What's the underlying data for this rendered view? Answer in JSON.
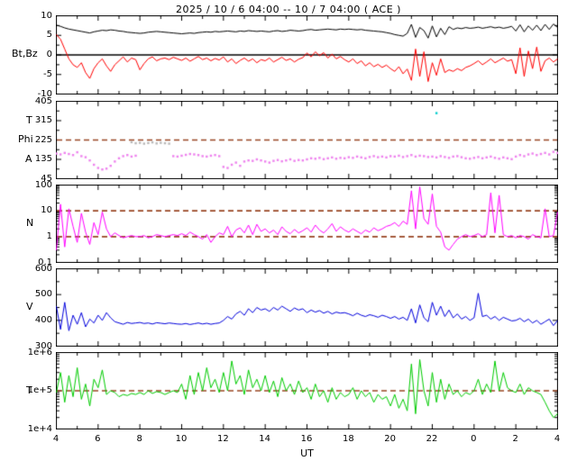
{
  "title": "2025 / 10 / 6   04:00 -- 10 / 7   04:00 ( ACE )",
  "colors": {
    "dashed_line": "#994422",
    "frame": "#000000",
    "background": "#ffffff"
  },
  "x_axis": {
    "label": "UT",
    "range": [
      4,
      28
    ],
    "tick_hours": [
      4,
      6,
      8,
      10,
      12,
      14,
      16,
      18,
      20,
      22,
      24,
      26,
      28
    ],
    "tick_labels": [
      "4",
      "6",
      "8",
      "10",
      "12",
      "14",
      "16",
      "18",
      "20",
      "22",
      "0",
      "2",
      "4"
    ]
  },
  "chart_data": [
    {
      "type": "line",
      "name": "magnetic-field",
      "axis_labels": [
        "Bt,Bz"
      ],
      "scale": "linear",
      "ylim": [
        -10,
        10
      ],
      "yticks": [
        10,
        5,
        0,
        -5,
        -10
      ],
      "ytick_labels": [
        "10",
        "5",
        "0",
        "-5",
        "-10"
      ],
      "solid_hlines": [
        0
      ],
      "dashed_hlines": [],
      "series": [
        {
          "name": "Bt",
          "color": "#000000",
          "style": "line",
          "values": [
            7.6,
            7.3,
            6.9,
            6.6,
            6.4,
            6.2,
            6.0,
            5.8,
            5.6,
            5.9,
            6.1,
            6.3,
            6.2,
            6.4,
            6.3,
            6.1,
            6.0,
            5.8,
            5.7,
            5.6,
            5.5,
            5.6,
            5.8,
            5.9,
            6.0,
            5.9,
            5.8,
            5.7,
            5.6,
            5.5,
            5.4,
            5.5,
            5.6,
            5.5,
            5.7,
            5.8,
            5.9,
            5.8,
            6.0,
            5.9,
            6.0,
            6.1,
            6.0,
            5.9,
            6.1,
            6.0,
            6.2,
            6.1,
            6.0,
            6.1,
            6.0,
            5.9,
            6.1,
            6.2,
            6.0,
            6.1,
            6.3,
            6.2,
            6.1,
            6.2,
            6.4,
            6.5,
            6.3,
            6.4,
            6.5,
            6.6,
            6.5,
            6.4,
            6.6,
            6.5,
            6.6,
            6.5,
            6.4,
            6.5,
            6.3,
            6.2,
            6.1,
            6.0,
            5.9,
            5.7,
            5.5,
            5.2,
            5.0,
            4.8,
            5.5,
            7.8,
            4.5,
            7.0,
            6.2,
            4.3,
            7.4,
            4.6,
            6.8,
            5.2,
            7.2,
            6.5,
            6.9,
            6.7,
            7.0,
            6.8,
            6.9,
            7.1,
            6.8,
            7.0,
            7.2,
            6.9,
            7.1,
            6.8,
            7.0,
            7.3,
            6.1,
            7.7,
            5.9,
            7.4,
            6.3,
            7.6,
            6.2,
            7.8,
            6.5,
            7.9,
            7.0
          ]
        },
        {
          "name": "Bz",
          "color": "#ff0000",
          "style": "line",
          "values": [
            5.2,
            4.0,
            1.5,
            -1.0,
            -2.5,
            -3.2,
            -2.0,
            -4.5,
            -6.0,
            -3.5,
            -2.0,
            -1.0,
            -2.8,
            -4.2,
            -2.5,
            -1.5,
            -0.5,
            -1.8,
            -0.8,
            -1.2,
            -3.8,
            -2.2,
            -1.0,
            -0.5,
            -1.5,
            -1.0,
            -0.8,
            -1.2,
            -0.6,
            -1.0,
            -1.4,
            -0.8,
            -1.6,
            -1.0,
            -0.4,
            -1.2,
            -0.8,
            -1.5,
            -0.9,
            -1.3,
            -0.5,
            -1.8,
            -1.0,
            -2.2,
            -1.4,
            -0.8,
            -1.6,
            -1.0,
            -2.0,
            -1.2,
            -1.5,
            -0.8,
            -1.8,
            -1.2,
            -0.6,
            -1.4,
            -1.0,
            -1.8,
            -1.1,
            -0.7,
            0.5,
            -0.5,
            0.8,
            -0.2,
            0.6,
            -0.8,
            0.2,
            -1.0,
            -0.4,
            -1.2,
            -1.8,
            -1.0,
            -2.2,
            -1.5,
            -2.8,
            -2.0,
            -3.0,
            -2.4,
            -3.2,
            -2.6,
            -3.5,
            -4.2,
            -3.0,
            -4.8,
            -3.6,
            -6.5,
            1.5,
            -5.5,
            0.8,
            -6.8,
            -2.0,
            -5.2,
            -1.0,
            -4.5,
            -3.8,
            -4.2,
            -3.5,
            -4.0,
            -3.2,
            -2.8,
            -2.2,
            -1.5,
            -2.5,
            -1.8,
            -1.0,
            -2.0,
            -1.4,
            -0.8,
            -1.6,
            -1.2,
            -4.8,
            1.8,
            -5.5,
            1.0,
            -3.5,
            2.0,
            -4.2,
            -1.5,
            -0.8,
            -1.8,
            -1.0
          ]
        }
      ]
    },
    {
      "type": "scatter",
      "name": "phi-angle",
      "axis_labels": [
        "T",
        "Phi",
        "A"
      ],
      "scale": "linear",
      "ylim": [
        45,
        405
      ],
      "yticks": [
        405,
        315,
        225,
        135,
        45
      ],
      "ytick_labels": [
        "405",
        "315",
        "225",
        "135",
        "45"
      ],
      "solid_hlines": [],
      "dashed_hlines": [
        225
      ],
      "series": [
        {
          "name": "Phi",
          "color": "#ee82ee",
          "style": "dots",
          "values": [
            162,
            158,
            165,
            160,
            155,
            168,
            150,
            145,
            130,
            110,
            95,
            88,
            92,
            105,
            125,
            140,
            150,
            155,
            148,
            152,
            null,
            null,
            null,
            null,
            null,
            null,
            null,
            null,
            150,
            148,
            152,
            156,
            160,
            158,
            155,
            150,
            148,
            152,
            155,
            150,
            100,
            95,
            110,
            120,
            105,
            125,
            130,
            128,
            135,
            130,
            125,
            120,
            128,
            132,
            126,
            130,
            135,
            128,
            132,
            130,
            135,
            140,
            138,
            142,
            136,
            140,
            144,
            138,
            142,
            140,
            145,
            142,
            148,
            144,
            140,
            146,
            150,
            145,
            148,
            144,
            150,
            148,
            152,
            146,
            150,
            155,
            148,
            152,
            150,
            146,
            148,
            144,
            150,
            146,
            142,
            148,
            150,
            145,
            140,
            138,
            142,
            146,
            140,
            144,
            148,
            142,
            138,
            144,
            140,
            136,
            148,
            155,
            150,
            158,
            162,
            155,
            160,
            165,
            158,
            170,
            165
          ]
        },
        {
          "name": "Phi-alternate",
          "color": "#b8b8b8",
          "style": "dots",
          "x": [
            7.6,
            7.8,
            8.0,
            8.2,
            8.4,
            8.6,
            8.8,
            9.0,
            9.2,
            9.4
          ],
          "values": [
            215,
            210,
            212,
            208,
            211,
            214,
            209,
            212,
            210,
            208
          ]
        },
        {
          "name": "outlier-point",
          "color": "#00cccc",
          "style": "dots",
          "x": [
            22.2
          ],
          "values": [
            350
          ]
        }
      ]
    },
    {
      "type": "line",
      "name": "proton-density",
      "axis_labels": [
        "N"
      ],
      "scale": "log",
      "ylim": [
        0.1,
        100
      ],
      "yticks": [
        100,
        10,
        1,
        0.1
      ],
      "ytick_labels": [
        "100",
        "10",
        "1",
        "0.1"
      ],
      "solid_hlines": [],
      "dashed_hlines": [
        10,
        1
      ],
      "series": [
        {
          "name": "N",
          "color": "#ff00ff",
          "style": "line",
          "values": [
            0.3,
            18,
            0.4,
            12,
            2.5,
            0.6,
            8,
            1.5,
            0.5,
            3.5,
            1.2,
            9,
            2.0,
            1.0,
            1.4,
            1.1,
            0.9,
            1.0,
            1.1,
            1.0,
            1.0,
            1.1,
            0.9,
            1.0,
            1.2,
            1.1,
            1.0,
            1.1,
            1.2,
            1.1,
            1.3,
            1.1,
            1.5,
            1.2,
            1.0,
            0.8,
            1.2,
            0.6,
            1.0,
            1.4,
            1.2,
            2.5,
            1.0,
            1.8,
            2.2,
            1.4,
            2.8,
            1.2,
            3.0,
            1.6,
            2.0,
            1.4,
            1.8,
            1.2,
            2.4,
            1.6,
            1.3,
            1.9,
            1.4,
            1.7,
            2.2,
            1.5,
            2.8,
            1.8,
            1.4,
            2.0,
            3.2,
            1.6,
            2.4,
            1.8,
            1.5,
            2.0,
            1.6,
            1.3,
            1.8,
            1.5,
            2.2,
            1.7,
            2.0,
            2.5,
            2.8,
            3.5,
            2.5,
            4.0,
            3.0,
            60,
            2.0,
            85,
            5.0,
            3.0,
            45,
            2.5,
            1.5,
            0.4,
            0.3,
            0.5,
            0.8,
            1.0,
            1.2,
            1.0,
            1.1,
            1.3,
            1.0,
            1.2,
            50,
            1.4,
            40,
            1.2,
            1.0,
            1.1,
            0.9,
            1.1,
            1.0,
            0.8,
            1.2,
            1.0,
            0.9,
            12,
            1.0,
            1.1,
            9.0
          ]
        }
      ]
    },
    {
      "type": "line",
      "name": "solar-wind-speed",
      "axis_labels": [
        "V"
      ],
      "scale": "linear",
      "ylim": [
        300,
        600
      ],
      "yticks": [
        600,
        500,
        400,
        300
      ],
      "ytick_labels": [
        "600",
        "500",
        "400",
        "300"
      ],
      "solid_hlines": [],
      "dashed_hlines": [],
      "series": [
        {
          "name": "V",
          "color": "#0000dd",
          "style": "line",
          "values": [
            455,
            365,
            470,
            360,
            420,
            385,
            430,
            375,
            405,
            390,
            420,
            400,
            430,
            410,
            395,
            390,
            385,
            392,
            388,
            390,
            392,
            388,
            390,
            386,
            391,
            389,
            387,
            390,
            388,
            386,
            385,
            388,
            384,
            387,
            390,
            386,
            389,
            385,
            388,
            390,
            400,
            415,
            405,
            425,
            435,
            420,
            445,
            430,
            450,
            440,
            445,
            435,
            450,
            440,
            455,
            445,
            435,
            448,
            440,
            445,
            430,
            440,
            432,
            438,
            428,
            435,
            425,
            432,
            428,
            430,
            425,
            418,
            428,
            420,
            415,
            422,
            418,
            412,
            420,
            415,
            408,
            415,
            405,
            412,
            400,
            445,
            390,
            460,
            410,
            395,
            470,
            420,
            455,
            415,
            440,
            410,
            425,
            405,
            415,
            400,
            410,
            505,
            415,
            420,
            405,
            415,
            400,
            412,
            405,
            398,
            400,
            408,
            395,
            405,
            390,
            400,
            385,
            395,
            405,
            380,
            400
          ]
        }
      ]
    },
    {
      "type": "line",
      "name": "proton-temperature",
      "axis_labels": [
        "T"
      ],
      "scale": "log",
      "ylim": [
        10000,
        1000000
      ],
      "yticks": [
        1000000,
        100000,
        10000
      ],
      "ytick_labels": [
        "1e+6",
        "1e+5",
        "1e+4"
      ],
      "solid_hlines": [],
      "dashed_hlines": [
        100000
      ],
      "series": [
        {
          "name": "T",
          "color": "#00cc00",
          "style": "line",
          "values": [
            90000,
            300000,
            50000,
            250000,
            70000,
            400000,
            60000,
            150000,
            40000,
            200000,
            120000,
            350000,
            80000,
            100000,
            90000,
            70000,
            80000,
            75000,
            85000,
            80000,
            90000,
            80000,
            100000,
            85000,
            95000,
            90000,
            80000,
            90000,
            100000,
            90000,
            150000,
            60000,
            250000,
            80000,
            300000,
            100000,
            400000,
            120000,
            200000,
            90000,
            300000,
            100000,
            600000,
            150000,
            250000,
            80000,
            350000,
            120000,
            200000,
            100000,
            250000,
            90000,
            180000,
            70000,
            220000,
            100000,
            150000,
            80000,
            180000,
            90000,
            120000,
            60000,
            150000,
            70000,
            100000,
            50000,
            120000,
            60000,
            90000,
            70000,
            80000,
            120000,
            60000,
            100000,
            70000,
            90000,
            50000,
            80000,
            60000,
            70000,
            40000,
            80000,
            35000,
            60000,
            30000,
            500000,
            25000,
            650000,
            100000,
            40000,
            300000,
            50000,
            200000,
            60000,
            150000,
            80000,
            100000,
            70000,
            90000,
            80000,
            100000,
            200000,
            80000,
            150000,
            90000,
            600000,
            100000,
            300000,
            120000,
            100000,
            90000,
            150000,
            80000,
            120000,
            100000,
            90000,
            80000,
            50000,
            30000,
            20000,
            25000
          ]
        }
      ]
    }
  ]
}
